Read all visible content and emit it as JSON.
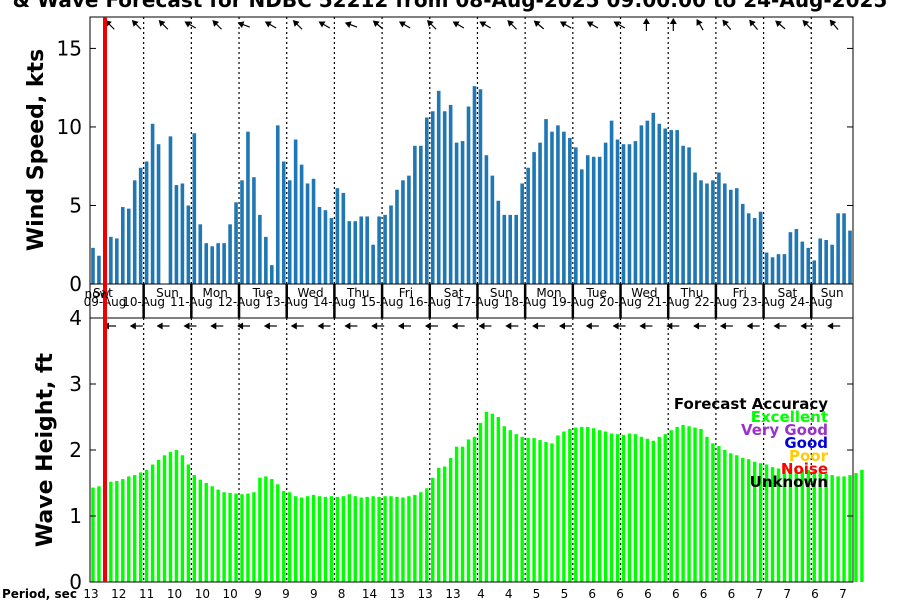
{
  "chart_data": [
    {
      "type": "bar",
      "title": "& Wave Forecast for NDBC 52212 from 08-Aug-2025 09:00:00 to 24-Aug-2025",
      "ylabel": "Wind Speed, kts",
      "ylim": [
        0,
        17
      ],
      "yticks": [
        "0",
        "5",
        "10",
        "15"
      ],
      "color": "#1f77b4",
      "values": [
        2.3,
        1.8,
        0,
        3.0,
        2.9,
        4.9,
        4.8,
        6.6,
        7.4,
        7.8,
        10.2,
        8.9,
        0,
        9.4,
        6.3,
        6.4,
        5.0,
        9.6,
        3.8,
        2.6,
        2.4,
        2.6,
        2.6,
        3.8,
        5.2,
        6.6,
        9.7,
        6.8,
        4.4,
        3.0,
        1.2,
        10.1,
        7.8,
        6.6,
        9.2,
        7.6,
        6.4,
        6.7,
        4.9,
        4.7,
        4.2,
        6.1,
        5.8,
        4.0,
        4.0,
        4.3,
        4.3,
        2.5,
        4.3,
        4.4,
        5.0,
        6.0,
        6.6,
        6.9,
        8.8,
        8.8,
        10.6,
        11.0,
        12.3,
        11.0,
        11.4,
        9.0,
        9.1,
        11.3,
        12.6,
        12.4,
        8.2,
        6.9,
        5.3,
        4.4,
        4.4,
        4.4,
        6.4,
        7.4,
        8.4,
        9.0,
        10.5,
        9.7,
        10.1,
        9.7,
        9.3,
        8.7,
        7.3,
        8.2,
        8.1,
        8.1,
        9.0,
        10.4,
        9.2,
        8.9,
        8.9,
        9.1,
        10.1,
        10.4,
        10.9,
        10.2,
        9.9,
        9.8,
        9.8,
        8.8,
        8.7,
        7.1,
        6.6,
        6.4,
        6.6,
        7.1,
        6.4,
        6.0,
        6.1,
        5.1,
        4.5,
        4.2,
        4.6,
        2.0,
        1.7,
        1.9,
        1.9,
        3.3,
        3.5,
        2.7,
        2.3,
        1.5,
        2.9,
        2.8,
        2.5,
        4.5,
        4.5,
        3.4
      ],
      "day_names": [
        "Sat",
        "Sun",
        "Mon",
        "Tue",
        "Wed",
        "Thu",
        "Fri",
        "Sat",
        "Sun",
        "Mon",
        "Tue",
        "Wed",
        "Thu",
        "Fri",
        "Sat",
        "Sun"
      ],
      "day_dates": [
        "09-Aug",
        "10-Aug",
        "11-Aug",
        "12-Aug",
        "13-Aug",
        "14-Aug",
        "15-Aug",
        "16-Aug",
        "17-Aug",
        "18-Aug",
        "19-Aug",
        "20-Aug",
        "21-Aug",
        "22-Aug",
        "23-Aug",
        "24-Aug"
      ],
      "now_label": "now"
    },
    {
      "type": "bar",
      "ylabel": "Wave Height, ft",
      "ylim": [
        0,
        4
      ],
      "yticks": [
        "0",
        "1",
        "2",
        "3",
        "4"
      ],
      "color": "#00ff00",
      "values": [
        1.43,
        1.45,
        1.5,
        1.52,
        1.53,
        1.56,
        1.6,
        1.62,
        1.66,
        1.7,
        1.78,
        1.85,
        1.92,
        1.97,
        2.0,
        1.92,
        1.78,
        1.62,
        1.55,
        1.5,
        1.45,
        1.4,
        1.36,
        1.35,
        1.34,
        1.33,
        1.34,
        1.36,
        1.58,
        1.6,
        1.56,
        1.48,
        1.38,
        1.36,
        1.3,
        1.28,
        1.3,
        1.32,
        1.3,
        1.29,
        1.3,
        1.29,
        1.3,
        1.33,
        1.3,
        1.28,
        1.29,
        1.3,
        1.29,
        1.3,
        1.3,
        1.29,
        1.28,
        1.3,
        1.32,
        1.36,
        1.42,
        1.58,
        1.73,
        1.75,
        1.88,
        2.05,
        2.05,
        2.16,
        2.2,
        2.41,
        2.58,
        2.55,
        2.5,
        2.36,
        2.3,
        2.24,
        2.2,
        2.18,
        2.18,
        2.15,
        2.12,
        2.1,
        2.22,
        2.28,
        2.32,
        2.34,
        2.35,
        2.35,
        2.33,
        2.3,
        2.28,
        2.25,
        2.24,
        2.23,
        2.25,
        2.24,
        2.2,
        2.17,
        2.14,
        2.2,
        2.24,
        2.3,
        2.35,
        2.38,
        2.36,
        2.34,
        2.32,
        2.2,
        2.1,
        2.06,
        2.0,
        1.95,
        1.92,
        1.88,
        1.86,
        1.82,
        1.8,
        1.78,
        1.74,
        1.72,
        1.72,
        1.72,
        1.7,
        1.7,
        1.7,
        1.68,
        1.66,
        1.64,
        1.62,
        1.6,
        1.6,
        1.62,
        1.65,
        1.7
      ]
    }
  ],
  "period": {
    "label": "Period, sec",
    "values": [
      "13",
      "12",
      "11",
      "10",
      "10",
      "10",
      "9",
      "9",
      "9",
      "8",
      "14",
      "13",
      "13",
      "13",
      "4",
      "4",
      "5",
      "5",
      "6",
      "6",
      "6",
      "6",
      "6",
      "6",
      "7",
      "7",
      "6",
      "7"
    ]
  },
  "legend": {
    "title": "Forecast Accuracy",
    "items": [
      {
        "label": "Excellent",
        "color": "#00ff00"
      },
      {
        "label": "Very Good",
        "color": "#9933cc"
      },
      {
        "label": "Good",
        "color": "#0000dd"
      },
      {
        "label": "Poor",
        "color": "#ffcc00"
      },
      {
        "label": "Noise",
        "color": "#ff0000"
      },
      {
        "label": "Unknown",
        "color": "#000000"
      }
    ]
  },
  "top_arrow_angles": [
    315,
    315,
    315,
    300,
    315,
    290,
    300,
    315,
    300,
    290,
    310,
    300,
    315,
    300,
    300,
    315,
    310,
    300,
    300,
    300,
    0,
    0,
    330,
    320,
    320,
    310,
    315,
    320
  ],
  "bottom_arrow_angles": [
    270,
    270,
    270,
    270,
    270,
    270,
    270,
    270,
    270,
    270,
    270,
    270,
    270,
    270,
    270,
    270,
    270,
    270,
    270,
    270,
    270,
    270,
    270,
    270,
    270,
    270,
    270,
    270
  ],
  "colors": {
    "wind_bar": "#1f77b4",
    "wave_bar": "#00ff00",
    "now_line": "#ee0000"
  }
}
